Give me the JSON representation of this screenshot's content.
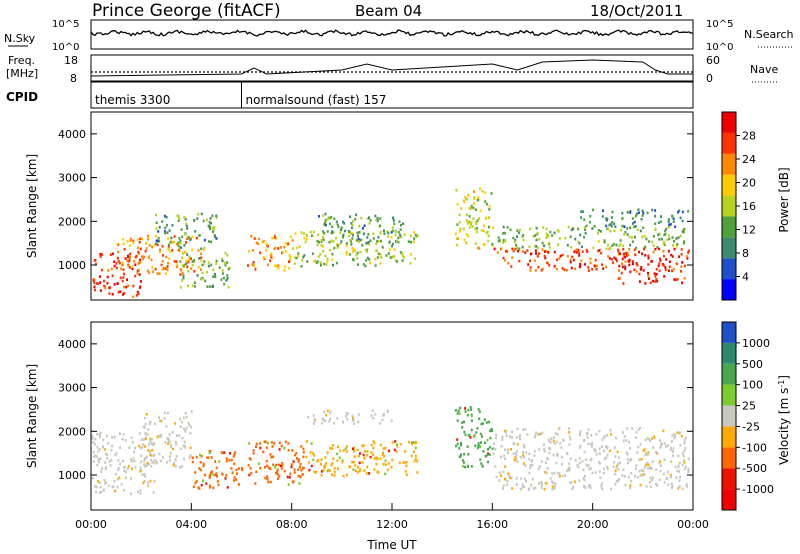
{
  "header": {
    "station": "Prince George (fitACF)",
    "beam": "Beam 04",
    "date": "18/Oct/2011"
  },
  "summary": {
    "nsky_label": "N.Sky",
    "nsky_ticks": [
      "10^5",
      "10^0"
    ],
    "nsearch_label": "N.Search",
    "nsearch_ticks": [
      "10^5",
      "10^0"
    ],
    "freq_label_1": "Freq.",
    "freq_label_2": "[MHz]",
    "freq_ticks": [
      "18",
      "8"
    ],
    "nave_label": "Nave",
    "nave_ticks": [
      "60",
      "0"
    ],
    "cpid_label": "CPID",
    "cpid_programs": [
      {
        "name": "themis 3300",
        "start_hour": 0
      },
      {
        "name": "normalsound (fast) 157",
        "start_hour": 6
      }
    ]
  },
  "chart_data": [
    {
      "type": "heatmap",
      "name": "power",
      "ylabel": "Slant Range [km]",
      "xlabel": "",
      "xlim": [
        0,
        24
      ],
      "ylim": [
        200,
        4500
      ],
      "yticks": [
        1000,
        2000,
        3000,
        4000
      ],
      "colorbar_label": "Power [dB]",
      "colorbar_ticks": [
        4,
        8,
        12,
        16,
        20,
        24,
        28
      ],
      "colorbar_range": [
        0,
        30
      ],
      "colorbar_colors": [
        "#0000ff",
        "#1e4fc8",
        "#3d8a6e",
        "#4ea13c",
        "#b8d21e",
        "#ffcc00",
        "#ff8800",
        "#ff3300",
        "#ee0000"
      ],
      "echo_regions": [
        {
          "t0": 0.0,
          "t1": 2.0,
          "r0": 300,
          "r1": 1300,
          "level": 28
        },
        {
          "t0": 1.0,
          "t1": 4.5,
          "r0": 800,
          "r1": 1700,
          "level": 22
        },
        {
          "t0": 2.5,
          "t1": 5.0,
          "r0": 1400,
          "r1": 2200,
          "level": 10
        },
        {
          "t0": 3.5,
          "t1": 5.5,
          "r0": 500,
          "r1": 1300,
          "level": 12
        },
        {
          "t0": 6.2,
          "t1": 8.0,
          "r0": 900,
          "r1": 1700,
          "level": 22
        },
        {
          "t0": 8.0,
          "t1": 13.0,
          "r0": 1000,
          "r1": 1800,
          "level": 14
        },
        {
          "t0": 9.0,
          "t1": 12.5,
          "r0": 1500,
          "r1": 2200,
          "level": 10
        },
        {
          "t0": 14.5,
          "t1": 16.0,
          "r0": 1400,
          "r1": 2800,
          "level": 16
        },
        {
          "t0": 16.0,
          "t1": 22.0,
          "r0": 900,
          "r1": 1400,
          "level": 26
        },
        {
          "t0": 16.0,
          "t1": 23.8,
          "r0": 1400,
          "r1": 1900,
          "level": 12
        },
        {
          "t0": 19.5,
          "t1": 23.8,
          "r0": 1900,
          "r1": 2300,
          "level": 8
        },
        {
          "t0": 21.0,
          "t1": 23.8,
          "r0": 600,
          "r1": 1400,
          "level": 28
        }
      ]
    },
    {
      "type": "heatmap",
      "name": "velocity",
      "ylabel": "Slant Range [km]",
      "xlabel": "Time UT",
      "xlim": [
        0,
        24
      ],
      "ylim": [
        200,
        4500
      ],
      "yticks": [
        1000,
        2000,
        3000,
        4000
      ],
      "xticks": [
        "00:00",
        "04:00",
        "08:00",
        "12:00",
        "16:00",
        "20:00",
        "00:00"
      ],
      "colorbar_label": "Velocity [m s^-1]",
      "colorbar_ticks": [
        "1000",
        "500",
        "100",
        "25",
        "-25",
        "-100",
        "-500",
        "-1000"
      ],
      "colorbar_colors": [
        "#1e50c8",
        "#2d8a6e",
        "#49a84a",
        "#7ccc30",
        "#c8c8c0",
        "#ffaa00",
        "#ff6600",
        "#ee1100",
        "#ee0000"
      ],
      "echo_regions": [
        {
          "t0": 0.0,
          "t1": 2.5,
          "r0": 600,
          "r1": 2000,
          "level": "ground"
        },
        {
          "t0": 2.0,
          "t1": 4.0,
          "r0": 1200,
          "r1": 2500,
          "level": "ground"
        },
        {
          "t0": 4.0,
          "t1": 6.0,
          "r0": 700,
          "r1": 1600,
          "level": "-500"
        },
        {
          "t0": 6.2,
          "t1": 8.5,
          "r0": 800,
          "r1": 1800,
          "level": "-500"
        },
        {
          "t0": 8.5,
          "t1": 13.0,
          "r0": 1000,
          "r1": 1800,
          "level": "-100"
        },
        {
          "t0": 8.5,
          "t1": 12.0,
          "r0": 2200,
          "r1": 2500,
          "level": "ground"
        },
        {
          "t0": 14.5,
          "t1": 16.0,
          "r0": 1200,
          "r1": 2600,
          "level": "100"
        },
        {
          "t0": 16.0,
          "t1": 23.8,
          "r0": 700,
          "r1": 2100,
          "level": "ground"
        }
      ]
    }
  ]
}
